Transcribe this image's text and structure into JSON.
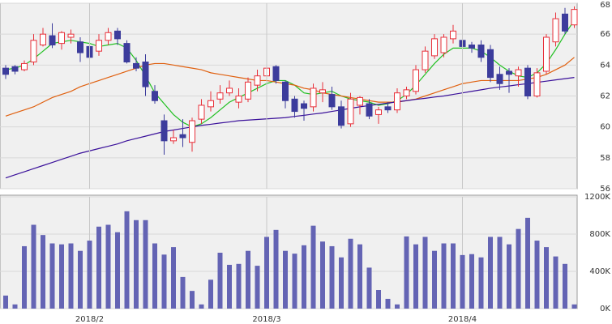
{
  "chart_data": [
    {
      "type": "candlestick",
      "open": [
        63.8,
        63.9,
        63.7,
        64.2,
        65.3,
        65.9,
        65.4,
        65.8,
        65.5,
        65.2,
        64.9,
        65.6,
        66.2,
        65.4,
        64.1,
        64.2,
        62.3,
        60.4,
        59.1,
        59.5,
        59.0,
        60.5,
        61.3,
        61.8,
        62.2,
        61.6,
        61.8,
        62.7,
        63.3,
        63.9,
        62.9,
        61.8,
        61.5,
        61.3,
        62.2,
        62.1,
        61.3,
        60.2,
        61.4,
        61.5,
        60.8,
        61.3,
        61.1,
        62.0,
        62.3,
        63.7,
        64.6,
        64.8,
        65.7,
        65.6,
        65.3,
        65.3,
        65.0,
        63.4,
        63.6,
        63.3,
        63.8,
        62.0,
        63.6,
        65.5,
        67.3,
        66.6
      ],
      "high": [
        64.0,
        64.0,
        64.3,
        66.0,
        66.4,
        66.7,
        66.2,
        66.3,
        65.8,
        65.5,
        66.0,
        66.4,
        66.4,
        65.6,
        64.5,
        64.7,
        62.7,
        60.8,
        59.8,
        60.5,
        60.6,
        61.8,
        62.3,
        62.7,
        63.0,
        62.5,
        63.2,
        63.7,
        64.2,
        64.0,
        63.0,
        62.0,
        61.7,
        62.8,
        62.9,
        62.6,
        61.7,
        62.2,
        62.0,
        61.8,
        61.3,
        61.6,
        62.5,
        62.6,
        64.0,
        65.2,
        66.0,
        66.0,
        66.6,
        66.1,
        65.5,
        65.6,
        65.3,
        63.9,
        63.8,
        63.9,
        64.0,
        63.8,
        66.0,
        67.4,
        67.7,
        67.8
      ],
      "low": [
        63.1,
        63.4,
        63.6,
        64.0,
        65.2,
        65.1,
        65.0,
        65.4,
        64.2,
        63.9,
        64.6,
        65.3,
        65.3,
        64.1,
        63.6,
        62.0,
        61.5,
        58.2,
        58.9,
        58.7,
        58.4,
        60.2,
        61.0,
        61.5,
        62.0,
        61.2,
        61.6,
        62.3,
        63.0,
        62.8,
        61.2,
        60.6,
        60.4,
        61.0,
        61.6,
        61.1,
        59.9,
        60.0,
        60.8,
        60.5,
        60.2,
        60.9,
        60.9,
        61.8,
        62.1,
        63.5,
        64.4,
        64.5,
        65.4,
        64.9,
        64.8,
        64.2,
        62.9,
        62.4,
        62.2,
        62.6,
        61.8,
        61.9,
        63.4,
        65.2,
        66.0,
        66.4
      ],
      "close": [
        63.4,
        63.6,
        64.1,
        65.6,
        66.0,
        65.3,
        66.1,
        66.0,
        64.8,
        64.5,
        65.6,
        66.1,
        65.7,
        64.2,
        63.8,
        62.6,
        61.7,
        59.1,
        59.3,
        59.3,
        60.4,
        61.4,
        61.7,
        62.2,
        62.5,
        62.0,
        62.9,
        63.3,
        63.8,
        63.0,
        61.7,
        61.0,
        61.2,
        62.5,
        62.4,
        61.3,
        60.1,
        61.8,
        61.9,
        60.7,
        61.1,
        61.1,
        62.2,
        62.4,
        63.7,
        64.9,
        65.7,
        65.8,
        66.2,
        65.2,
        65.1,
        64.5,
        63.2,
        62.8,
        63.4,
        63.7,
        62.0,
        63.5,
        65.8,
        67.0,
        66.2,
        67.6
      ],
      "up_color": "#e8303a",
      "down_color": "#3c3c9c",
      "lines": [
        {
          "color": "#22c022",
          "values": [
            63.7,
            63.8,
            64.0,
            64.4,
            64.9,
            65.4,
            65.5,
            65.6,
            65.5,
            65.4,
            65.2,
            65.3,
            65.4,
            65.1,
            64.3,
            63.3,
            62.2,
            61.5,
            60.8,
            60.3,
            60.0,
            60.2,
            60.6,
            61.1,
            61.6,
            61.9,
            62.2,
            62.5,
            62.8,
            63.0,
            63.0,
            62.7,
            62.2,
            62.1,
            62.2,
            62.3,
            62.0,
            61.8,
            61.7,
            61.6,
            61.4,
            61.5,
            61.7,
            62.1,
            62.7,
            63.4,
            64.1,
            64.7,
            65.1,
            65.1,
            65.1,
            64.9,
            64.5,
            64.0,
            63.6,
            63.3,
            63.2,
            63.5,
            64.1,
            65.0,
            66.0,
            66.9
          ]
        },
        {
          "color": "#e0600f",
          "values": [
            60.7,
            60.9,
            61.1,
            61.3,
            61.6,
            61.9,
            62.1,
            62.3,
            62.6,
            62.8,
            63.0,
            63.2,
            63.4,
            63.6,
            63.8,
            64.0,
            64.1,
            64.1,
            64.0,
            63.9,
            63.8,
            63.7,
            63.5,
            63.4,
            63.3,
            63.2,
            63.1,
            63.0,
            63.0,
            62.9,
            62.8,
            62.7,
            62.5,
            62.4,
            62.2,
            62.1,
            62.0,
            61.9,
            61.8,
            61.7,
            61.6,
            61.6,
            61.6,
            61.7,
            61.8,
            62.0,
            62.2,
            62.4,
            62.6,
            62.8,
            62.9,
            63.0,
            63.0,
            63.0,
            63.0,
            63.0,
            63.1,
            63.2,
            63.4,
            63.7,
            64.0,
            64.5
          ]
        },
        {
          "color": "#3a109a",
          "values": [
            56.7,
            56.9,
            57.1,
            57.3,
            57.5,
            57.7,
            57.9,
            58.1,
            58.3,
            58.45,
            58.6,
            58.75,
            58.9,
            59.1,
            59.25,
            59.4,
            59.55,
            59.7,
            59.8,
            59.9,
            60.0,
            60.1,
            60.17,
            60.25,
            60.32,
            60.4,
            60.44,
            60.48,
            60.52,
            60.56,
            60.6,
            60.68,
            60.75,
            60.83,
            60.9,
            61.0,
            61.1,
            61.2,
            61.3,
            61.38,
            61.46,
            61.54,
            61.62,
            61.7,
            61.78,
            61.85,
            61.93,
            62.0,
            62.1,
            62.2,
            62.3,
            62.4,
            62.5,
            62.58,
            62.65,
            62.73,
            62.8,
            62.88,
            62.96,
            63.04,
            63.12,
            63.2
          ]
        }
      ],
      "ylim": [
        56,
        68
      ],
      "yticks": [
        56,
        58,
        60,
        62,
        64,
        66,
        68
      ],
      "grid": true
    },
    {
      "type": "bar",
      "categories": [
        null,
        null,
        null,
        null,
        null,
        null,
        null,
        null,
        null,
        "2018/2",
        null,
        null,
        null,
        null,
        null,
        null,
        null,
        null,
        null,
        null,
        null,
        null,
        null,
        null,
        null,
        null,
        null,
        null,
        "2018/3",
        null,
        null,
        null,
        null,
        null,
        null,
        null,
        null,
        null,
        null,
        null,
        null,
        null,
        null,
        null,
        null,
        null,
        null,
        null,
        null,
        "2018/4",
        null,
        null,
        null,
        null,
        null,
        null,
        null,
        null,
        null,
        null,
        null,
        null
      ],
      "values": [
        140,
        45,
        670,
        900,
        790,
        700,
        690,
        700,
        620,
        730,
        880,
        900,
        820,
        1045,
        950,
        950,
        700,
        580,
        660,
        340,
        190,
        45,
        310,
        600,
        470,
        480,
        620,
        460,
        770,
        845,
        620,
        590,
        680,
        890,
        720,
        670,
        550,
        750,
        690,
        440,
        200,
        105,
        45,
        775,
        690,
        770,
        620,
        700,
        700,
        575,
        585,
        550,
        770,
        770,
        690,
        855,
        975,
        730,
        660,
        560,
        480,
        45
      ],
      "color": "#6464b4",
      "ylim": [
        0,
        1200
      ],
      "yticks": [
        {
          "value": 0,
          "label": "0K"
        },
        {
          "value": 400,
          "label": "400K"
        },
        {
          "value": 800,
          "label": "800K"
        },
        {
          "value": 1200,
          "label": "1200K"
        }
      ],
      "grid": true
    }
  ]
}
